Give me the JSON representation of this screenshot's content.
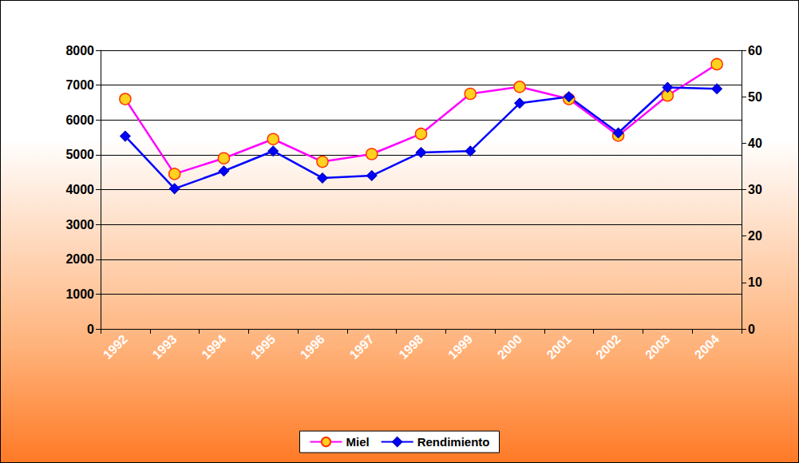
{
  "chart_data": {
    "type": "line",
    "categories": [
      "1992",
      "1993",
      "1994",
      "1995",
      "1996",
      "1997",
      "1998",
      "1999",
      "2000",
      "2001",
      "2002",
      "2003",
      "2004"
    ],
    "series": [
      {
        "name": "Miel",
        "color": "#ff00ff",
        "marker": "circle",
        "axis": "y",
        "values": [
          6600,
          4450,
          4900,
          5450,
          4800,
          5020,
          5600,
          6750,
          6950,
          6600,
          5550,
          6700,
          7600
        ]
      },
      {
        "name": "Rendimiento",
        "color": "#0000ff",
        "marker": "diamond",
        "axis": "y2",
        "values": [
          41.5,
          30.2,
          34,
          38.3,
          32.5,
          33,
          38,
          38.3,
          48.6,
          50,
          42.2,
          52,
          51.7
        ]
      }
    ],
    "ylim": [
      0,
      8000
    ],
    "yticks": [
      0,
      1000,
      2000,
      3000,
      4000,
      5000,
      6000,
      7000,
      8000
    ],
    "y2lim": [
      0,
      60
    ],
    "y2ticks": [
      0,
      10,
      20,
      30,
      40,
      50,
      60
    ],
    "grid": true,
    "legend": "bottom"
  }
}
